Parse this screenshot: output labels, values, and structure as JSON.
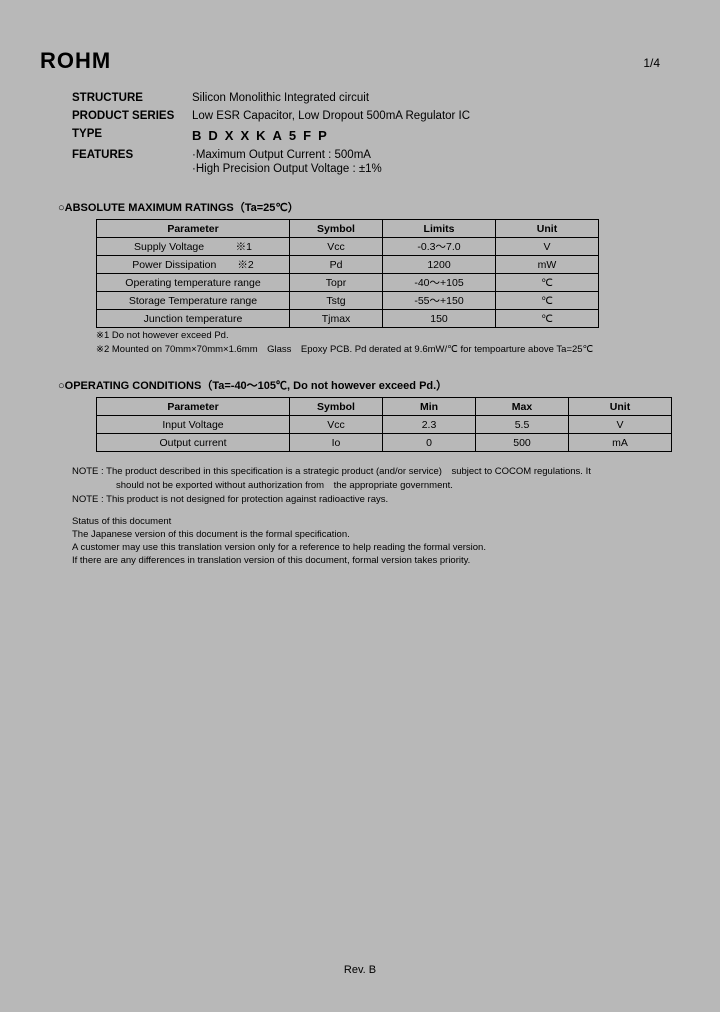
{
  "logo": "ROHM",
  "pageNumber": "1/4",
  "header": {
    "structureLabel": "STRUCTURE",
    "structureValue": "Silicon Monolithic Integrated circuit",
    "seriesLabel": "PRODUCT SERIES",
    "seriesValue": "Low ESR Capacitor, Low Dropout 500mA Regulator IC",
    "typeLabel": "TYPE",
    "typeValue": "BDXXKA5FP",
    "featuresLabel": "FEATURES",
    "features": [
      "·Maximum Output Current : 500mA",
      "·High Precision Output Voltage : ±1%"
    ]
  },
  "absMax": {
    "title": "○ABSOLUTE MAXIMUM RATINGS（Ta=25℃）",
    "headers": [
      "Parameter",
      "Symbol",
      "Limits",
      "Unit"
    ],
    "rows": [
      [
        "Supply Voltage　　　※1",
        "Vcc",
        "-0.3～7.0",
        "V"
      ],
      [
        "Power Dissipation　　※2",
        "Pd",
        "1200",
        "mW"
      ],
      [
        "Operating temperature range",
        "Topr",
        "-40～+105",
        "℃"
      ],
      [
        "Storage Temperature range",
        "Tstg",
        "-55～+150",
        "℃"
      ],
      [
        "Junction temperature",
        "Tjmax",
        "150",
        "℃"
      ]
    ],
    "notes": [
      "※1 Do not however exceed Pd.",
      "※2 Mounted on 70mm×70mm×1.6mm　Glass　Epoxy PCB. Pd derated at 9.6mW/℃ for tempoarture above Ta=25℃"
    ]
  },
  "opCond": {
    "title": "○OPERATING CONDITIONS（Ta=-40～105℃, Do not however exceed Pd.）",
    "headers": [
      "Parameter",
      "Symbol",
      "Min",
      "Max",
      "Unit"
    ],
    "rows": [
      [
        "Input Voltage",
        "Vcc",
        "2.3",
        "5.5",
        "V"
      ],
      [
        "Output current",
        "Io",
        "0",
        "500",
        "mA"
      ]
    ]
  },
  "notes": {
    "n1a": "NOTE : The product described in this specification is a strategic product (and/or service)　subject to COCOM regulations. It",
    "n1b": "should not be exported without authorization from　the appropriate government.",
    "n2": "NOTE : This product is not designed for protection against radioactive rays."
  },
  "status": {
    "s1": "Status of this document",
    "s2": "The Japanese version of this document is the formal specification.",
    "s3": "A customer may use this translation version only for a reference to help reading the formal version.",
    "s4": "If there are any differences in translation version of this document, formal version takes priority."
  },
  "revision": "Rev. B",
  "colors": {
    "background": "#b8b8b8",
    "text": "#000000",
    "border": "#000000"
  }
}
